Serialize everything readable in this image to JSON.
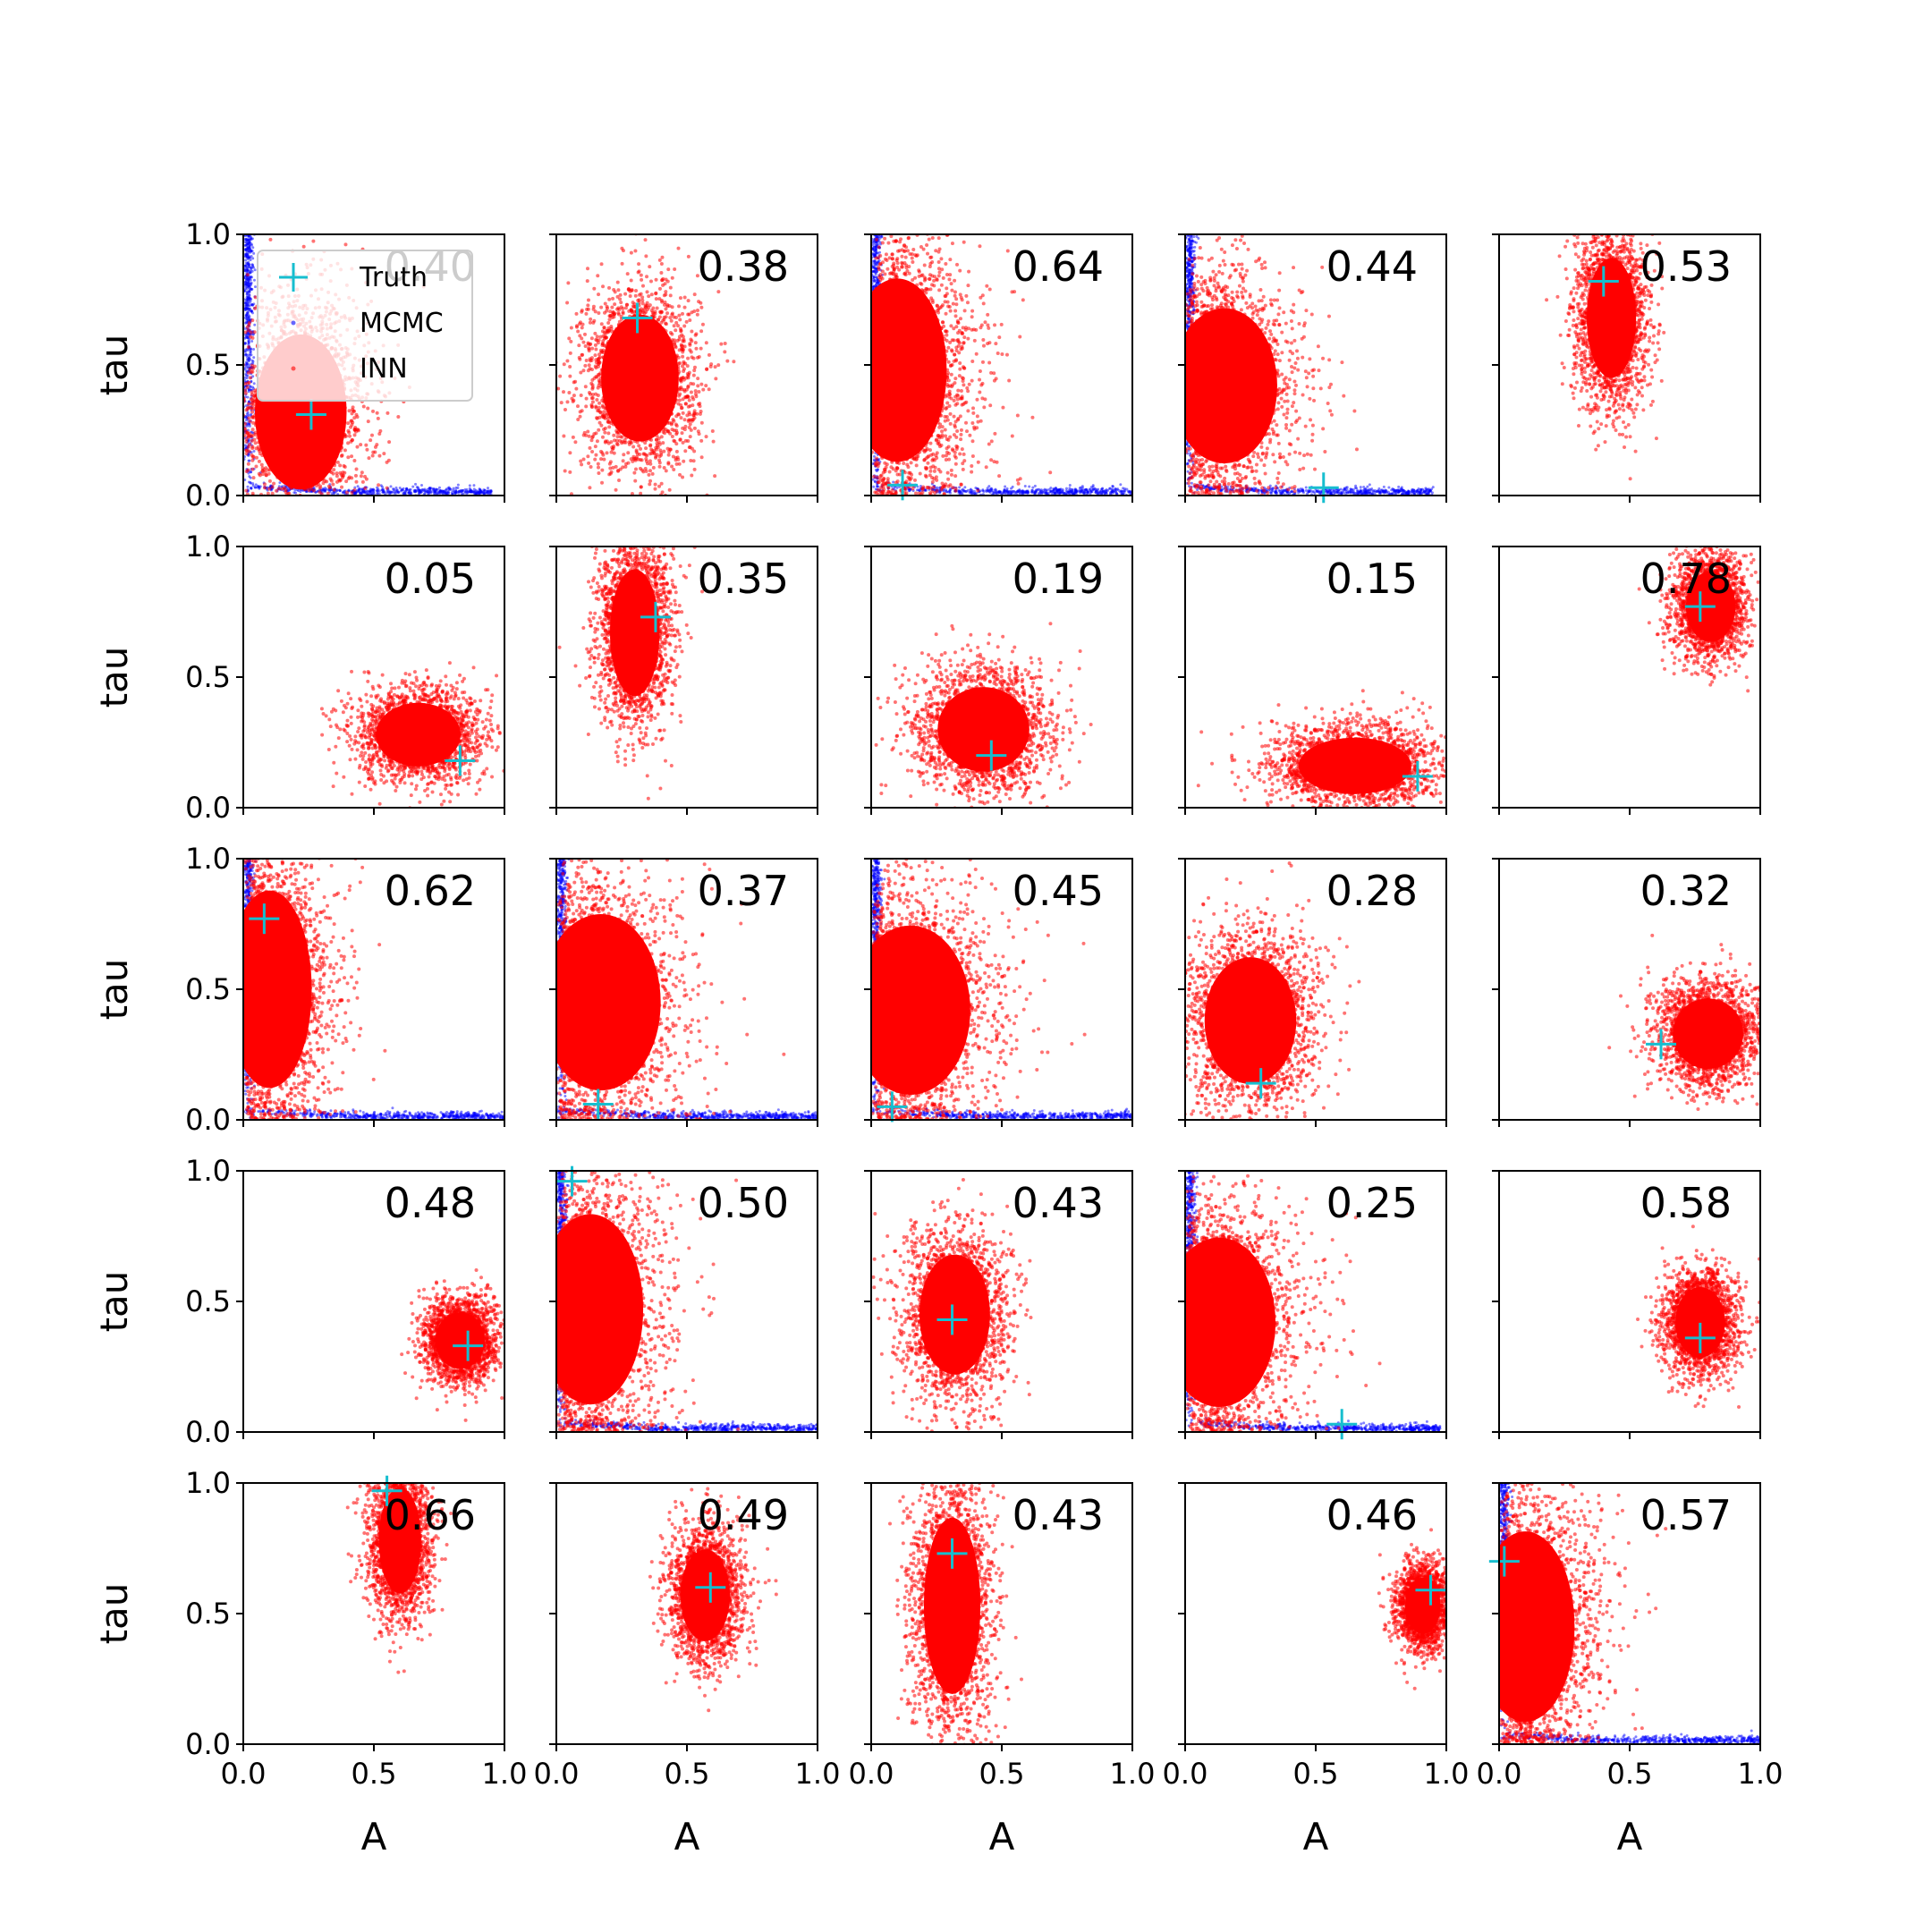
{
  "chart_data": {
    "type": "scatter",
    "layout": "5x5 grid of subplots",
    "xlabel": "A",
    "ylabel": "tau",
    "xlim": [
      0,
      1
    ],
    "ylim": [
      0,
      1
    ],
    "xticks": [
      "0.0",
      "0.5",
      "1.0"
    ],
    "yticks": [
      "0.0",
      "0.5",
      "1.0"
    ],
    "colors": {
      "truth": "#17becf",
      "mcmc": "#0000ff",
      "inn": "#ff0000"
    },
    "legend": {
      "location": "upper-left of first subplot",
      "entries": [
        {
          "label": "Truth",
          "marker": "plus",
          "color": "#17becf"
        },
        {
          "label": "MCMC",
          "marker": "dot",
          "color": "#0000ff"
        },
        {
          "label": "INN",
          "marker": "dot",
          "color": "#ff0000"
        }
      ]
    },
    "panels": [
      {
        "annotation": "0.40",
        "truth": [
          0.26,
          0.31
        ],
        "inn": {
          "type": "blob",
          "cx": 0.22,
          "cy": 0.32,
          "sx": 0.13,
          "sy": 0.22
        },
        "mcmc": {
          "type": "corner",
          "tail_end": 0.95
        }
      },
      {
        "annotation": "0.38",
        "truth": [
          0.31,
          0.68
        ],
        "inn": {
          "type": "blob",
          "cx": 0.32,
          "cy": 0.45,
          "sx": 0.11,
          "sy": 0.18
        },
        "mcmc": null
      },
      {
        "annotation": "0.64",
        "truth": [
          0.12,
          0.04
        ],
        "inn": {
          "type": "corner",
          "cx": 0.1,
          "cy": 0.48,
          "sx": 0.14,
          "sy": 0.26
        },
        "mcmc": {
          "type": "corner",
          "tail_end": 1.0
        }
      },
      {
        "annotation": "0.44",
        "truth": [
          0.53,
          0.03
        ],
        "inn": {
          "type": "corner",
          "cx": 0.15,
          "cy": 0.42,
          "sx": 0.15,
          "sy": 0.22
        },
        "mcmc": {
          "type": "corner",
          "tail_end": 0.95
        }
      },
      {
        "annotation": "0.53",
        "truth": [
          0.4,
          0.82
        ],
        "inn": {
          "type": "blob",
          "cx": 0.43,
          "cy": 0.68,
          "sx": 0.07,
          "sy": 0.17
        },
        "mcmc": null
      },
      {
        "annotation": "0.05",
        "truth": [
          0.83,
          0.18
        ],
        "inn": {
          "type": "blob",
          "cx": 0.67,
          "cy": 0.28,
          "sx": 0.12,
          "sy": 0.09
        },
        "mcmc": null
      },
      {
        "annotation": "0.35",
        "truth": [
          0.38,
          0.73
        ],
        "inn": {
          "type": "blob",
          "cx": 0.3,
          "cy": 0.67,
          "sx": 0.07,
          "sy": 0.18
        },
        "mcmc": null
      },
      {
        "annotation": "0.19",
        "truth": [
          0.46,
          0.2
        ],
        "inn": {
          "type": "blob",
          "cx": 0.43,
          "cy": 0.3,
          "sx": 0.13,
          "sy": 0.12
        },
        "mcmc": null
      },
      {
        "annotation": "0.15",
        "truth": [
          0.89,
          0.12
        ],
        "inn": {
          "type": "blob",
          "cx": 0.65,
          "cy": 0.16,
          "sx": 0.16,
          "sy": 0.08
        },
        "mcmc": null
      },
      {
        "annotation": "0.78",
        "truth": [
          0.77,
          0.77
        ],
        "inn": {
          "type": "blob",
          "cx": 0.81,
          "cy": 0.77,
          "sx": 0.07,
          "sy": 0.1
        },
        "mcmc": null
      },
      {
        "annotation": "0.62",
        "truth": [
          0.08,
          0.77
        ],
        "inn": {
          "type": "corner",
          "cx": 0.1,
          "cy": 0.5,
          "sx": 0.12,
          "sy": 0.28
        },
        "mcmc": {
          "type": "corner",
          "tail_end": 1.0
        }
      },
      {
        "annotation": "0.37",
        "truth": [
          0.16,
          0.06
        ],
        "inn": {
          "type": "corner",
          "cx": 0.17,
          "cy": 0.45,
          "sx": 0.17,
          "sy": 0.25
        },
        "mcmc": {
          "type": "corner",
          "tail_end": 1.0
        }
      },
      {
        "annotation": "0.45",
        "truth": [
          0.08,
          0.05
        ],
        "inn": {
          "type": "corner",
          "cx": 0.15,
          "cy": 0.42,
          "sx": 0.17,
          "sy": 0.24
        },
        "mcmc": {
          "type": "corner",
          "tail_end": 1.0
        }
      },
      {
        "annotation": "0.28",
        "truth": [
          0.29,
          0.14
        ],
        "inn": {
          "type": "blob",
          "cx": 0.25,
          "cy": 0.38,
          "sx": 0.13,
          "sy": 0.18
        },
        "mcmc": null
      },
      {
        "annotation": "0.32",
        "truth": [
          0.62,
          0.29
        ],
        "inn": {
          "type": "blob",
          "cx": 0.8,
          "cy": 0.33,
          "sx": 0.1,
          "sy": 0.1
        },
        "mcmc": null
      },
      {
        "annotation": "0.48",
        "truth": [
          0.86,
          0.33
        ],
        "inn": {
          "type": "blob",
          "cx": 0.83,
          "cy": 0.35,
          "sx": 0.07,
          "sy": 0.08
        },
        "mcmc": null
      },
      {
        "annotation": "0.50",
        "truth": [
          0.06,
          0.96
        ],
        "inn": {
          "type": "corner",
          "cx": 0.13,
          "cy": 0.47,
          "sx": 0.15,
          "sy": 0.27
        },
        "mcmc": {
          "type": "corner",
          "tail_end": 1.0
        }
      },
      {
        "annotation": "0.43",
        "truth": [
          0.31,
          0.43
        ],
        "inn": {
          "type": "blob",
          "cx": 0.32,
          "cy": 0.45,
          "sx": 0.1,
          "sy": 0.17
        },
        "mcmc": null
      },
      {
        "annotation": "0.25",
        "truth": [
          0.6,
          0.03
        ],
        "inn": {
          "type": "corner",
          "cx": 0.13,
          "cy": 0.42,
          "sx": 0.16,
          "sy": 0.24
        },
        "mcmc": {
          "type": "corner",
          "tail_end": 0.98
        }
      },
      {
        "annotation": "0.58",
        "truth": [
          0.77,
          0.36
        ],
        "inn": {
          "type": "blob",
          "cx": 0.77,
          "cy": 0.42,
          "sx": 0.07,
          "sy": 0.1
        },
        "mcmc": null
      },
      {
        "annotation": "0.66",
        "truth": [
          0.55,
          0.97
        ],
        "inn": {
          "type": "blob",
          "cx": 0.6,
          "cy": 0.78,
          "sx": 0.06,
          "sy": 0.15
        },
        "mcmc": null
      },
      {
        "annotation": "0.49",
        "truth": [
          0.59,
          0.6
        ],
        "inn": {
          "type": "blob",
          "cx": 0.57,
          "cy": 0.57,
          "sx": 0.07,
          "sy": 0.13
        },
        "mcmc": null
      },
      {
        "annotation": "0.43",
        "truth": [
          0.31,
          0.73
        ],
        "inn": {
          "type": "blob",
          "cx": 0.31,
          "cy": 0.53,
          "sx": 0.08,
          "sy": 0.25
        },
        "mcmc": null
      },
      {
        "annotation": "0.46",
        "truth": [
          0.94,
          0.59
        ],
        "inn": {
          "type": "blob",
          "cx": 0.91,
          "cy": 0.53,
          "sx": 0.05,
          "sy": 0.08
        },
        "mcmc": null
      },
      {
        "annotation": "0.57",
        "truth": [
          0.02,
          0.7
        ],
        "inn": {
          "type": "corner",
          "cx": 0.1,
          "cy": 0.45,
          "sx": 0.14,
          "sy": 0.27
        },
        "mcmc": {
          "type": "corner",
          "tail_end": 1.0
        }
      }
    ]
  }
}
